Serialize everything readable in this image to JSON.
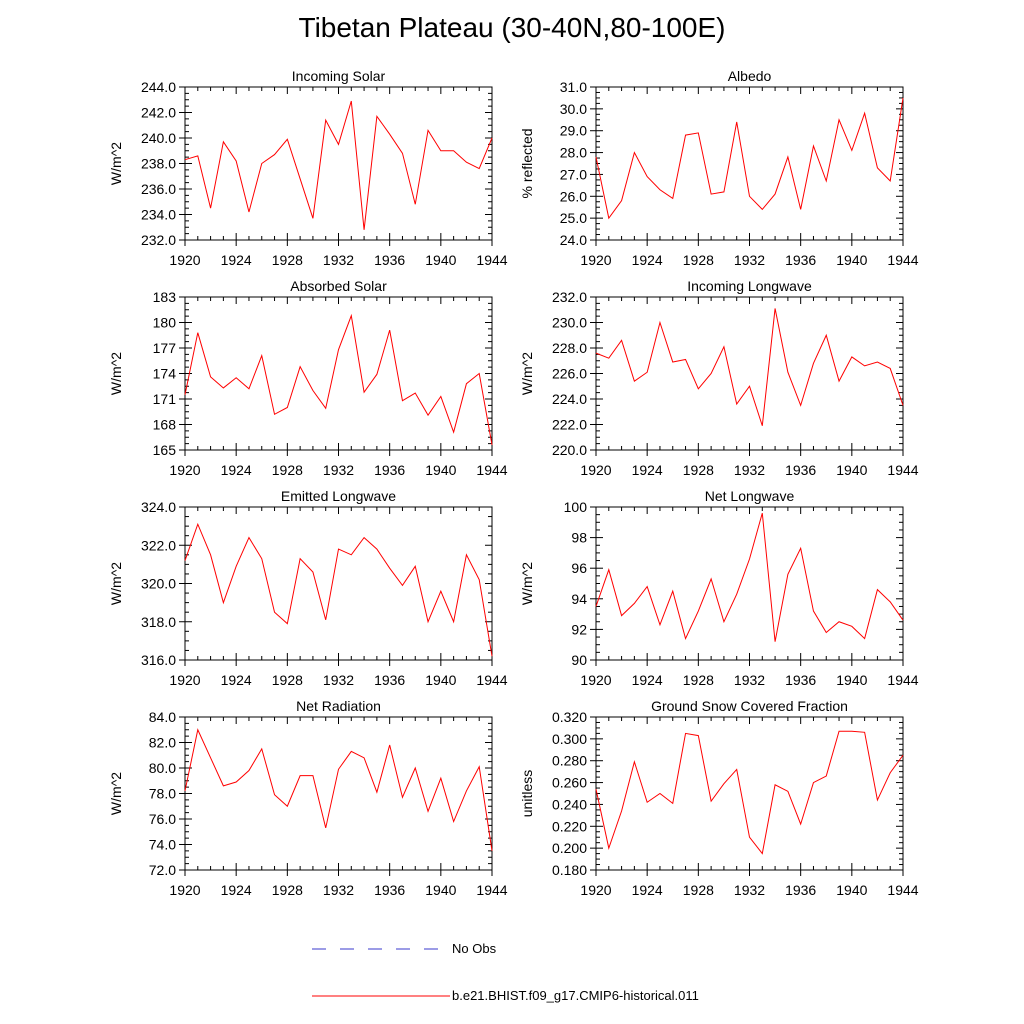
{
  "title": "Tibetan Plateau (30-40N,80-100E)",
  "colors": {
    "model": "#ff0000",
    "obs": "#3a3acc",
    "axis": "#000000"
  },
  "legend": [
    {
      "label": "No Obs",
      "style": "dashed",
      "color": "#3a3acc"
    },
    {
      "label": "b.e21.BHIST.f09_g17.CMIP6-historical.011",
      "style": "solid",
      "color": "#ff0000"
    }
  ],
  "chart_data": [
    {
      "type": "line",
      "title": "Incoming Solar",
      "ylabel": "W/m^2",
      "xlim": [
        1920,
        1944
      ],
      "ylim": [
        232,
        244
      ],
      "xticks": [
        "1920",
        "1924",
        "1928",
        "1932",
        "1936",
        "1940",
        "1944"
      ],
      "yticks": [
        "232.0",
        "234.0",
        "236.0",
        "238.0",
        "240.0",
        "242.0",
        "244.0"
      ],
      "x": [
        1920,
        1921,
        1922,
        1923,
        1924,
        1925,
        1926,
        1927,
        1928,
        1929,
        1930,
        1931,
        1932,
        1933,
        1934,
        1935,
        1936,
        1937,
        1938,
        1939,
        1940,
        1941,
        1942,
        1943,
        1944
      ],
      "series": [
        {
          "name": "b.e21.BHIST.f09_g17.CMIP6-historical.011",
          "values": [
            238.3,
            238.6,
            234.5,
            239.7,
            238.2,
            234.2,
            238.0,
            238.7,
            239.9,
            236.8,
            233.7,
            241.4,
            239.5,
            242.9,
            232.8,
            241.7,
            240.3,
            238.8,
            234.8,
            240.6,
            239.0,
            239.0,
            238.1,
            237.6,
            240.0
          ]
        }
      ]
    },
    {
      "type": "line",
      "title": "Albedo",
      "ylabel": "% reflected",
      "xlim": [
        1920,
        1944
      ],
      "ylim": [
        24,
        31
      ],
      "xticks": [
        "1920",
        "1924",
        "1928",
        "1932",
        "1936",
        "1940",
        "1944"
      ],
      "yticks": [
        "24.0",
        "25.0",
        "26.0",
        "27.0",
        "28.0",
        "29.0",
        "30.0",
        "31.0"
      ],
      "x": [
        1920,
        1921,
        1922,
        1923,
        1924,
        1925,
        1926,
        1927,
        1928,
        1929,
        1930,
        1931,
        1932,
        1933,
        1934,
        1935,
        1936,
        1937,
        1938,
        1939,
        1940,
        1941,
        1942,
        1943,
        1944
      ],
      "series": [
        {
          "name": "b.e21.BHIST.f09_g17.CMIP6-historical.011",
          "values": [
            27.8,
            25.0,
            25.8,
            28.0,
            26.9,
            26.3,
            25.9,
            28.8,
            28.9,
            26.1,
            26.2,
            29.4,
            26.0,
            25.4,
            26.1,
            27.8,
            25.4,
            28.3,
            26.7,
            29.5,
            28.1,
            29.8,
            27.3,
            26.7,
            30.5
          ]
        }
      ]
    },
    {
      "type": "line",
      "title": "Absorbed Solar",
      "ylabel": "W/m^2",
      "xlim": [
        1920,
        1944
      ],
      "ylim": [
        165,
        183
      ],
      "xticks": [
        "1920",
        "1924",
        "1928",
        "1932",
        "1936",
        "1940",
        "1944"
      ],
      "yticks": [
        "165",
        "168",
        "171",
        "174",
        "177",
        "180",
        "183"
      ],
      "x": [
        1920,
        1921,
        1922,
        1923,
        1924,
        1925,
        1926,
        1927,
        1928,
        1929,
        1930,
        1931,
        1932,
        1933,
        1934,
        1935,
        1936,
        1937,
        1938,
        1939,
        1940,
        1941,
        1942,
        1943,
        1944
      ],
      "series": [
        {
          "name": "b.e21.BHIST.f09_g17.CMIP6-historical.011",
          "values": [
            171.5,
            178.8,
            173.6,
            172.3,
            173.5,
            172.2,
            176.1,
            169.2,
            170.0,
            174.8,
            172.0,
            169.9,
            176.8,
            180.8,
            171.8,
            173.9,
            179.1,
            170.8,
            171.7,
            169.1,
            171.3,
            167.1,
            172.8,
            174.0,
            165.6
          ]
        }
      ]
    },
    {
      "type": "line",
      "title": "Incoming Longwave",
      "ylabel": "W/m^2",
      "xlim": [
        1920,
        1944
      ],
      "ylim": [
        220,
        232
      ],
      "xticks": [
        "1920",
        "1924",
        "1928",
        "1932",
        "1936",
        "1940",
        "1944"
      ],
      "yticks": [
        "220.0",
        "222.0",
        "224.0",
        "226.0",
        "228.0",
        "230.0",
        "232.0"
      ],
      "x": [
        1920,
        1921,
        1922,
        1923,
        1924,
        1925,
        1926,
        1927,
        1928,
        1929,
        1930,
        1931,
        1932,
        1933,
        1934,
        1935,
        1936,
        1937,
        1938,
        1939,
        1940,
        1941,
        1942,
        1943,
        1944
      ],
      "series": [
        {
          "name": "b.e21.BHIST.f09_g17.CMIP6-historical.011",
          "values": [
            227.6,
            227.2,
            228.6,
            225.4,
            226.1,
            230.0,
            226.9,
            227.1,
            224.8,
            226.0,
            228.1,
            223.6,
            225.0,
            221.9,
            231.1,
            226.1,
            223.5,
            226.8,
            229.0,
            225.4,
            227.3,
            226.6,
            226.9,
            226.4,
            223.5
          ]
        }
      ]
    },
    {
      "type": "line",
      "title": "Emitted Longwave",
      "ylabel": "W/m^2",
      "xlim": [
        1920,
        1944
      ],
      "ylim": [
        316,
        324
      ],
      "xticks": [
        "1920",
        "1924",
        "1928",
        "1932",
        "1936",
        "1940",
        "1944"
      ],
      "yticks": [
        "316.0",
        "318.0",
        "320.0",
        "322.0",
        "324.0"
      ],
      "x": [
        1920,
        1921,
        1922,
        1923,
        1924,
        1925,
        1926,
        1927,
        1928,
        1929,
        1930,
        1931,
        1932,
        1933,
        1934,
        1935,
        1936,
        1937,
        1938,
        1939,
        1940,
        1941,
        1942,
        1943,
        1944
      ],
      "series": [
        {
          "name": "b.e21.BHIST.f09_g17.CMIP6-historical.011",
          "values": [
            321.2,
            323.1,
            321.5,
            319.0,
            320.9,
            322.4,
            321.3,
            318.5,
            317.9,
            321.3,
            320.6,
            318.1,
            321.8,
            321.5,
            322.4,
            321.8,
            320.8,
            319.9,
            320.9,
            318.0,
            319.6,
            318.0,
            321.5,
            320.2,
            316.2
          ]
        }
      ]
    },
    {
      "type": "line",
      "title": "Net Longwave",
      "ylabel": "W/m^2",
      "xlim": [
        1920,
        1944
      ],
      "ylim": [
        90,
        100
      ],
      "xticks": [
        "1920",
        "1924",
        "1928",
        "1932",
        "1936",
        "1940",
        "1944"
      ],
      "yticks": [
        "90",
        "92",
        "94",
        "96",
        "98",
        "100"
      ],
      "x": [
        1920,
        1921,
        1922,
        1923,
        1924,
        1925,
        1926,
        1927,
        1928,
        1929,
        1930,
        1931,
        1932,
        1933,
        1934,
        1935,
        1936,
        1937,
        1938,
        1939,
        1940,
        1941,
        1942,
        1943,
        1944
      ],
      "series": [
        {
          "name": "b.e21.BHIST.f09_g17.CMIP6-historical.011",
          "values": [
            93.5,
            95.9,
            92.9,
            93.7,
            94.8,
            92.3,
            94.5,
            91.4,
            93.2,
            95.3,
            92.5,
            94.3,
            96.6,
            99.6,
            91.2,
            95.6,
            97.3,
            93.2,
            91.8,
            92.5,
            92.2,
            91.4,
            94.6,
            93.8,
            92.6
          ]
        }
      ]
    },
    {
      "type": "line",
      "title": "Net Radiation",
      "ylabel": "W/m^2",
      "xlim": [
        1920,
        1944
      ],
      "ylim": [
        72,
        84
      ],
      "xticks": [
        "1920",
        "1924",
        "1928",
        "1932",
        "1936",
        "1940",
        "1944"
      ],
      "yticks": [
        "72.0",
        "74.0",
        "76.0",
        "78.0",
        "80.0",
        "82.0",
        "84.0"
      ],
      "x": [
        1920,
        1921,
        1922,
        1923,
        1924,
        1925,
        1926,
        1927,
        1928,
        1929,
        1930,
        1931,
        1932,
        1933,
        1934,
        1935,
        1936,
        1937,
        1938,
        1939,
        1940,
        1941,
        1942,
        1943,
        1944
      ],
      "series": [
        {
          "name": "b.e21.BHIST.f09_g17.CMIP6-historical.011",
          "values": [
            78.2,
            83.0,
            80.8,
            78.6,
            78.9,
            79.8,
            81.5,
            77.9,
            77.0,
            79.4,
            79.4,
            75.3,
            79.9,
            81.3,
            80.8,
            78.1,
            81.8,
            77.7,
            80.0,
            76.6,
            79.2,
            75.8,
            78.2,
            80.1,
            73.5
          ]
        }
      ]
    },
    {
      "type": "line",
      "title": "Ground Snow Covered Fraction",
      "ylabel": "unitless",
      "xlim": [
        1920,
        1944
      ],
      "ylim": [
        0.18,
        0.32
      ],
      "xticks": [
        "1920",
        "1924",
        "1928",
        "1932",
        "1936",
        "1940",
        "1944"
      ],
      "yticks": [
        "0.180",
        "0.200",
        "0.220",
        "0.240",
        "0.260",
        "0.280",
        "0.300",
        "0.320"
      ],
      "x": [
        1920,
        1921,
        1922,
        1923,
        1924,
        1925,
        1926,
        1927,
        1928,
        1929,
        1930,
        1931,
        1932,
        1933,
        1934,
        1935,
        1936,
        1937,
        1938,
        1939,
        1940,
        1941,
        1942,
        1943,
        1944
      ],
      "series": [
        {
          "name": "b.e21.BHIST.f09_g17.CMIP6-historical.011",
          "values": [
            0.254,
            0.2,
            0.234,
            0.279,
            0.242,
            0.25,
            0.241,
            0.305,
            0.303,
            0.243,
            0.259,
            0.272,
            0.21,
            0.195,
            0.258,
            0.252,
            0.222,
            0.26,
            0.266,
            0.307,
            0.307,
            0.306,
            0.244,
            0.269,
            0.285
          ]
        }
      ]
    }
  ]
}
